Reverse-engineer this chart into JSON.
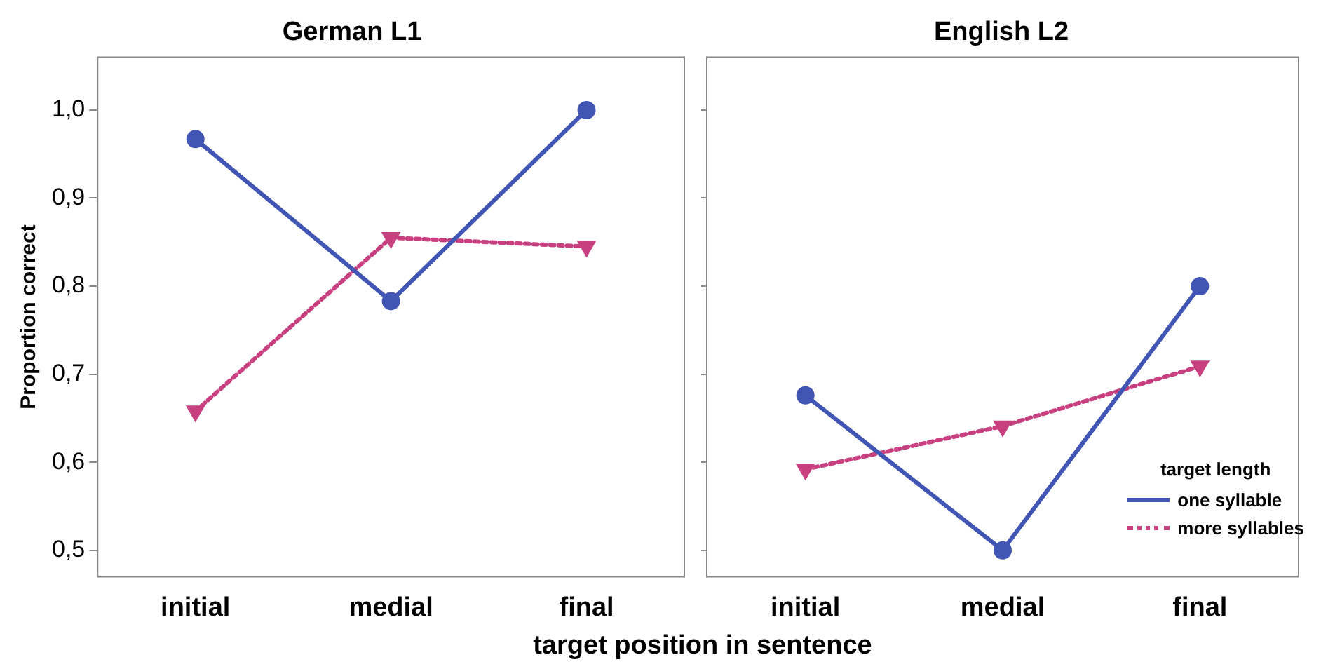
{
  "chart_data": [
    {
      "type": "line",
      "title": "German L1",
      "ylabel": "Proportion correct",
      "xlabel": "target position in sentence",
      "categories": [
        "initial",
        "medial",
        "final"
      ],
      "series": [
        {
          "color": "#4155b4",
          "values": [
            0.967,
            0.783,
            1.0
          ],
          "marker": "circle",
          "line_style": "solid"
        },
        {
          "color": "#c8407f",
          "values": [
            0.658,
            0.855,
            0.845
          ],
          "marker": "triangle",
          "line_style": "dotted"
        }
      ],
      "ylim": [
        0.47,
        1.06
      ],
      "yticks": [
        {
          "value": 0.5,
          "label": "0,5"
        },
        {
          "value": 0.6,
          "label": "0,6"
        },
        {
          "value": 0.7,
          "label": "0,7"
        },
        {
          "value": 0.8,
          "label": "0,8"
        },
        {
          "value": 0.9,
          "label": "0,9"
        },
        {
          "value": 1.0,
          "label": "1,0"
        }
      ],
      "grid": false,
      "legend": false
    },
    {
      "type": "line",
      "title": "English L2",
      "categories": [
        "initial",
        "medial",
        "final"
      ],
      "series": [
        {
          "name": "one syllable",
          "color": "#4155b4",
          "values": [
            0.676,
            0.5,
            0.8
          ],
          "marker": "circle",
          "line_style": "solid"
        },
        {
          "name": "more syllables",
          "color": "#c8407f",
          "values": [
            0.592,
            0.641,
            0.709
          ],
          "marker": "triangle",
          "line_style": "dotted"
        }
      ],
      "ylim": [
        0.47,
        1.06
      ],
      "yticks": [
        0.5,
        0.6,
        0.7,
        0.8,
        0.9,
        1.0
      ],
      "tick_labels": "x",
      "grid": false,
      "legend": "bottom right",
      "legend_title": "target length"
    }
  ]
}
